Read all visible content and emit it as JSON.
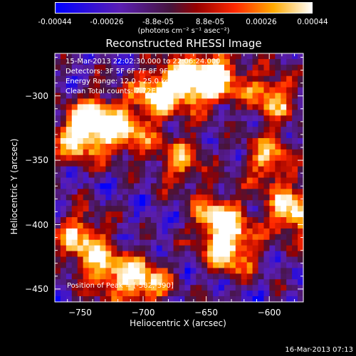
{
  "colorbar": {
    "tick_labels": [
      "-0.00044",
      "-0.00026",
      "-8.8e-05",
      "8.8e-05",
      "0.00026",
      "0.00044"
    ],
    "label": "(photons cm⁻² s⁻¹ asec⁻²)",
    "range": [
      -0.00044,
      0.00044
    ],
    "colormap": "blue-purple-red-orange-yellow-white"
  },
  "chart_data": {
    "type": "heatmap",
    "title": "Reconstructed RHESSI Image",
    "xlabel": "Heliocentric X (arcsec)",
    "ylabel": "Heliocentric Y (arcsec)",
    "xlim": [
      -770,
      -573
    ],
    "ylim": [
      -460,
      -267
    ],
    "xticks": [
      -750,
      -700,
      -650,
      -600
    ],
    "yticks": [
      -300,
      -350,
      -400,
      -450
    ],
    "info": [
      "15-Mar-2013 22:02:30.000 to 22:06:24.000",
      "Detectors: 3F 5F 6F 7F 8F 9F, Att 0",
      "Energy Range: 12.0 - 25.0 keV",
      "Clean    Total counts: 7.72E+03"
    ],
    "peak_text": "Position of Peak = [-582,-390]",
    "peak": [
      -582,
      -390
    ],
    "hotspots": [
      {
        "x": -688,
        "y": -296,
        "level": 0.95
      },
      {
        "x": -735,
        "y": -318,
        "level": 0.85
      },
      {
        "x": -752,
        "y": -332,
        "level": 0.9
      },
      {
        "x": -660,
        "y": -290,
        "level": 0.9
      },
      {
        "x": -640,
        "y": -285,
        "level": 0.85
      },
      {
        "x": -598,
        "y": -300,
        "level": 0.8
      },
      {
        "x": -582,
        "y": -390,
        "level": 1.0
      },
      {
        "x": -640,
        "y": -395,
        "level": 0.95
      },
      {
        "x": -630,
        "y": -420,
        "level": 0.9
      },
      {
        "x": -700,
        "y": -445,
        "level": 0.95
      },
      {
        "x": -750,
        "y": -410,
        "level": 0.8
      },
      {
        "x": -730,
        "y": -435,
        "level": 0.75
      },
      {
        "x": -670,
        "y": -350,
        "level": 0.7
      },
      {
        "x": -600,
        "y": -350,
        "level": 0.75
      },
      {
        "x": -710,
        "y": -330,
        "level": 0.65
      }
    ]
  },
  "timestamp": "16-Mar-2013 07:13"
}
